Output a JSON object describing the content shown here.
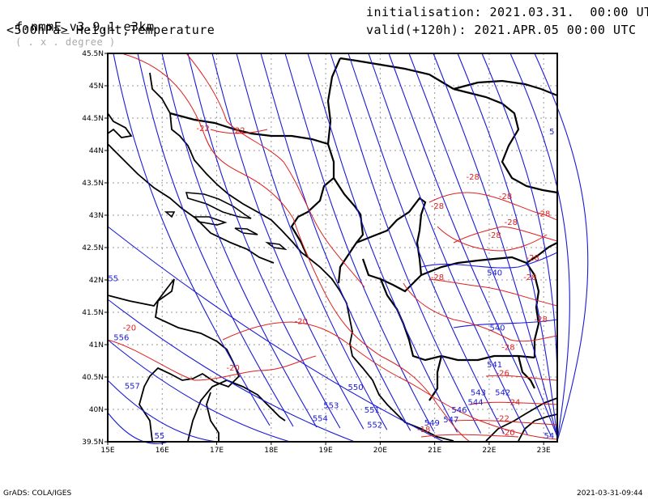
{
  "header": {
    "model": "f-nmmE_v3.9.1-e3km",
    "projection": "( . x . degree )",
    "level_fields": "<500hPa> Height,Temperature",
    "init": "initialisation: 2021.03.31.  00:00 UTC",
    "valid": "valid(+120h): 2021.APR.05 00:00 UTC"
  },
  "footer": {
    "software": "GrADS: COLA/IGES",
    "timestamp": "2021-03-31-09:44"
  },
  "map": {
    "lon_range": [
      15,
      23.25
    ],
    "lat_range": [
      39.5,
      45.5
    ],
    "lon_ticks": [
      "15E",
      "16E",
      "17E",
      "18E",
      "19E",
      "20E",
      "21E",
      "22E",
      "23E"
    ],
    "lat_ticks": [
      "39.5N",
      "40N",
      "40.5N",
      "41N",
      "41.5N",
      "42N",
      "42.5N",
      "43N",
      "43.5N",
      "44N",
      "44.5N",
      "45N",
      "45.5N"
    ],
    "grid": true,
    "height_color": "#1a1ad8",
    "temp_color": "#e02020",
    "height_labels": [
      {
        "text": "557",
        "lon": 15.45,
        "lat": 40.32
      },
      {
        "text": "556",
        "lon": 15.25,
        "lat": 41.07
      },
      {
        "text": "55",
        "lon": 15.1,
        "lat": 41.98
      },
      {
        "text": "554",
        "lon": 18.9,
        "lat": 39.82
      },
      {
        "text": "553",
        "lon": 19.1,
        "lat": 40.02
      },
      {
        "text": "552",
        "lon": 19.9,
        "lat": 39.72
      },
      {
        "text": "551",
        "lon": 19.85,
        "lat": 39.95
      },
      {
        "text": "550",
        "lon": 19.55,
        "lat": 40.3
      },
      {
        "text": "549",
        "lon": 20.95,
        "lat": 39.75
      },
      {
        "text": "547",
        "lon": 21.3,
        "lat": 39.8
      },
      {
        "text": "546",
        "lon": 21.45,
        "lat": 39.95
      },
      {
        "text": "544",
        "lon": 21.75,
        "lat": 40.07
      },
      {
        "text": "543",
        "lon": 21.8,
        "lat": 40.22
      },
      {
        "text": "542",
        "lon": 22.25,
        "lat": 40.22
      },
      {
        "text": "541",
        "lon": 22.1,
        "lat": 40.65
      },
      {
        "text": "540",
        "lon": 22.15,
        "lat": 41.22
      },
      {
        "text": "540",
        "lon": 22.1,
        "lat": 42.07
      },
      {
        "text": "5",
        "lon": 23.15,
        "lat": 44.25
      },
      {
        "text": "55",
        "lon": 15.95,
        "lat": 39.55
      },
      {
        "text": "54",
        "lon": 23.1,
        "lat": 39.55
      }
    ],
    "temp_labels": [
      {
        "text": "-22",
        "lon": 16.75,
        "lat": 44.3
      },
      {
        "text": "-22",
        "lon": 17.4,
        "lat": 44.27
      },
      {
        "text": "-20",
        "lon": 15.4,
        "lat": 41.22
      },
      {
        "text": "-20",
        "lon": 18.55,
        "lat": 41.32
      },
      {
        "text": "-20",
        "lon": 17.3,
        "lat": 40.6
      },
      {
        "text": "-28",
        "lon": 21.7,
        "lat": 43.55
      },
      {
        "text": "-28",
        "lon": 21.05,
        "lat": 43.1
      },
      {
        "text": "-28",
        "lon": 22.3,
        "lat": 43.25
      },
      {
        "text": "-28",
        "lon": 23.0,
        "lat": 42.98
      },
      {
        "text": "-28",
        "lon": 22.4,
        "lat": 42.85
      },
      {
        "text": "-28",
        "lon": 22.1,
        "lat": 42.65
      },
      {
        "text": "-28",
        "lon": 22.8,
        "lat": 42.3
      },
      {
        "text": "-28",
        "lon": 22.75,
        "lat": 42.0
      },
      {
        "text": "-28",
        "lon": 21.05,
        "lat": 42.0
      },
      {
        "text": "-28",
        "lon": 22.95,
        "lat": 41.35
      },
      {
        "text": "-28",
        "lon": 22.35,
        "lat": 40.92
      },
      {
        "text": "-26",
        "lon": 22.25,
        "lat": 40.52
      },
      {
        "text": "-24",
        "lon": 22.45,
        "lat": 40.07
      },
      {
        "text": "-22",
        "lon": 22.25,
        "lat": 39.82
      },
      {
        "text": "-20",
        "lon": 22.35,
        "lat": 39.6
      },
      {
        "text": "-18",
        "lon": 20.8,
        "lat": 39.65
      }
    ]
  }
}
